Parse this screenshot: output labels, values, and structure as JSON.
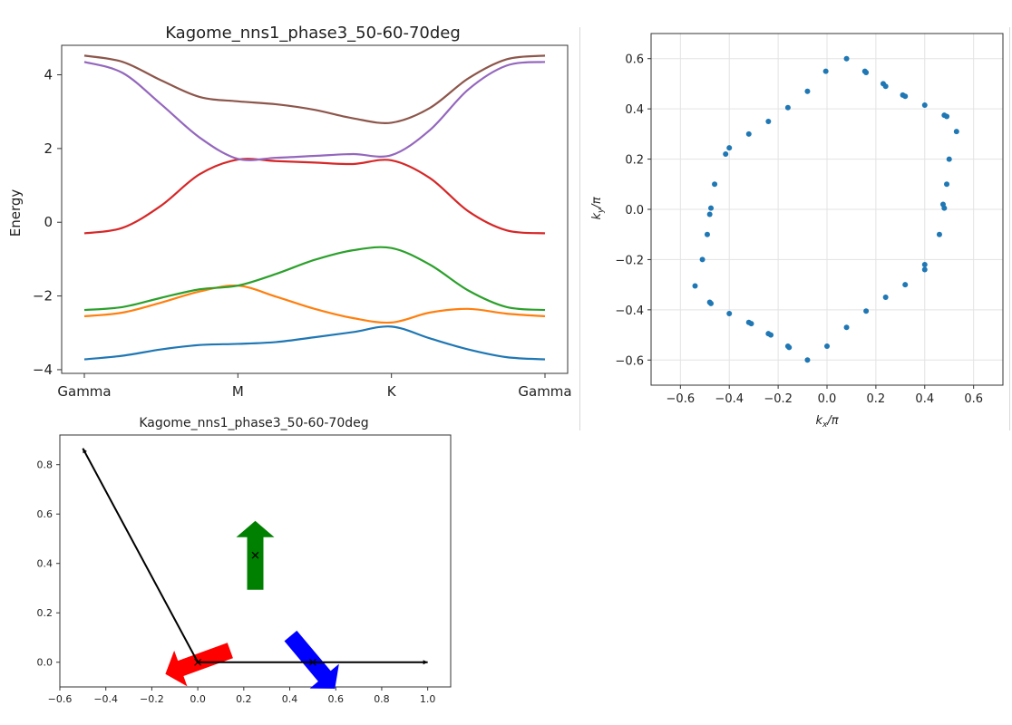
{
  "chart_data": [
    {
      "id": "band_structure",
      "type": "line",
      "title": "Kagome_nns1_phase3_50-60-70deg",
      "xlabel": "",
      "ylabel": "Energy",
      "x_ticks": [
        "Gamma",
        "M",
        "K",
        "Gamma"
      ],
      "x_tick_positions": [
        0,
        1,
        2,
        3
      ],
      "xlim": [
        0,
        3
      ],
      "ylim": [
        -4.1,
        4.8
      ],
      "y_ticks": [
        4,
        2,
        0,
        -2,
        -4
      ],
      "grid": false,
      "series": [
        {
          "color": "#1f77b4",
          "x": [
            0,
            0.25,
            0.5,
            0.75,
            1,
            1.25,
            1.5,
            1.75,
            2,
            2.25,
            2.5,
            2.75,
            3
          ],
          "y": [
            -3.72,
            -3.62,
            -3.45,
            -3.33,
            -3.3,
            -3.25,
            -3.12,
            -2.98,
            -2.83,
            -3.15,
            -3.45,
            -3.66,
            -3.72
          ]
        },
        {
          "color": "#ff7f0e",
          "x": [
            0,
            0.25,
            0.5,
            0.75,
            1,
            1.25,
            1.5,
            1.75,
            2,
            2.25,
            2.5,
            2.75,
            3
          ],
          "y": [
            -2.55,
            -2.45,
            -2.18,
            -1.88,
            -1.72,
            -2.02,
            -2.35,
            -2.6,
            -2.72,
            -2.45,
            -2.35,
            -2.48,
            -2.55
          ]
        },
        {
          "color": "#2ca02c",
          "x": [
            0,
            0.25,
            0.5,
            0.75,
            1,
            1.25,
            1.5,
            1.75,
            2,
            2.25,
            2.5,
            2.75,
            3
          ],
          "y": [
            -2.38,
            -2.3,
            -2.05,
            -1.82,
            -1.72,
            -1.4,
            -1.02,
            -0.76,
            -0.7,
            -1.15,
            -1.85,
            -2.3,
            -2.38
          ]
        },
        {
          "color": "#d62728",
          "x": [
            0,
            0.25,
            0.5,
            0.75,
            1,
            1.25,
            1.5,
            1.75,
            2,
            2.25,
            2.5,
            2.75,
            3
          ],
          "y": [
            -0.3,
            -0.15,
            0.45,
            1.3,
            1.7,
            1.66,
            1.62,
            1.58,
            1.68,
            1.2,
            0.3,
            -0.22,
            -0.3
          ]
        },
        {
          "color": "#9467bd",
          "x": [
            0,
            0.25,
            0.5,
            0.75,
            1,
            1.25,
            1.5,
            1.75,
            2,
            2.25,
            2.5,
            2.75,
            3
          ],
          "y": [
            4.35,
            4.05,
            3.2,
            2.3,
            1.72,
            1.75,
            1.8,
            1.85,
            1.82,
            2.5,
            3.6,
            4.25,
            4.35
          ]
        },
        {
          "color": "#8c564b",
          "x": [
            0,
            0.25,
            0.5,
            0.75,
            1,
            1.25,
            1.5,
            1.75,
            2,
            2.25,
            2.5,
            2.75,
            3
          ],
          "y": [
            4.52,
            4.35,
            3.85,
            3.4,
            3.28,
            3.2,
            3.05,
            2.82,
            2.7,
            3.1,
            3.9,
            4.42,
            4.52
          ]
        }
      ]
    },
    {
      "id": "fermi_surface",
      "type": "scatter",
      "title": "",
      "xlabel": "k_x/π",
      "ylabel": "k_y/π",
      "xlim": [
        -0.72,
        0.72
      ],
      "ylim": [
        -0.7,
        0.7
      ],
      "x_ticks": [
        -0.6,
        -0.4,
        -0.2,
        0.0,
        0.2,
        0.4,
        0.6
      ],
      "y_ticks": [
        0.6,
        0.4,
        0.2,
        0.0,
        -0.2,
        -0.4,
        -0.6
      ],
      "grid": true,
      "color": "#1f77b4",
      "points": [
        [
          0.08,
          0.6
        ],
        [
          -0.005,
          0.55
        ],
        [
          0.155,
          0.55
        ],
        [
          0.16,
          0.545
        ],
        [
          -0.08,
          0.47
        ],
        [
          0.23,
          0.5
        ],
        [
          0.24,
          0.49
        ],
        [
          -0.16,
          0.405
        ],
        [
          0.31,
          0.455
        ],
        [
          0.32,
          0.45
        ],
        [
          0.4,
          0.415
        ],
        [
          -0.24,
          0.35
        ],
        [
          -0.32,
          0.3
        ],
        [
          0.48,
          0.375
        ],
        [
          0.49,
          0.37
        ],
        [
          0.53,
          0.31
        ],
        [
          -0.4,
          0.245
        ],
        [
          -0.415,
          0.22
        ],
        [
          0.5,
          0.2
        ],
        [
          -0.46,
          0.1
        ],
        [
          0.49,
          0.1
        ],
        [
          0.475,
          0.02
        ],
        [
          0.48,
          0.005
        ],
        [
          -0.475,
          0.005
        ],
        [
          -0.48,
          -0.02
        ],
        [
          -0.49,
          -0.1
        ],
        [
          0.46,
          -0.1
        ],
        [
          -0.51,
          -0.2
        ],
        [
          0.4,
          -0.22
        ],
        [
          0.4,
          -0.24
        ],
        [
          -0.54,
          -0.305
        ],
        [
          0.32,
          -0.3
        ],
        [
          0.24,
          -0.35
        ],
        [
          -0.48,
          -0.37
        ],
        [
          -0.475,
          -0.375
        ],
        [
          0.16,
          -0.405
        ],
        [
          -0.4,
          -0.415
        ],
        [
          -0.32,
          -0.45
        ],
        [
          -0.31,
          -0.455
        ],
        [
          0.08,
          -0.47
        ],
        [
          -0.24,
          -0.495
        ],
        [
          -0.23,
          -0.5
        ],
        [
          0.0,
          -0.545
        ],
        [
          -0.16,
          -0.545
        ],
        [
          -0.155,
          -0.55
        ],
        [
          -0.08,
          -0.6
        ]
      ]
    },
    {
      "id": "spin_config",
      "type": "scatter",
      "title": "Kagome_nns1_phase3_50-60-70deg",
      "xlabel": "",
      "ylabel": "",
      "xlim": [
        -0.6,
        1.1
      ],
      "ylim": [
        -0.1,
        0.92
      ],
      "x_ticks": [
        -0.6,
        -0.4,
        -0.2,
        0.0,
        0.2,
        0.4,
        0.6,
        0.8,
        1.0
      ],
      "y_ticks": [
        0.8,
        0.6,
        0.4,
        0.2,
        0.0
      ],
      "grid": false,
      "lattice_vectors": [
        {
          "from": [
            0,
            0
          ],
          "to": [
            1.0,
            0.0
          ],
          "color": "#000000"
        },
        {
          "from": [
            0,
            0
          ],
          "to": [
            -0.5,
            0.866
          ],
          "color": "#000000"
        }
      ],
      "sites": [
        [
          0,
          0
        ],
        [
          0.5,
          0
        ],
        [
          0.25,
          0.433
        ]
      ],
      "arrows": [
        {
          "at": [
            0.0,
            0.0
          ],
          "angle_deg": 200,
          "color": "#ff0000"
        },
        {
          "at": [
            0.5,
            0.0
          ],
          "angle_deg": -50,
          "color": "#0000ff"
        },
        {
          "at": [
            0.25,
            0.433
          ],
          "angle_deg": 90,
          "color": "#008000"
        }
      ]
    }
  ]
}
